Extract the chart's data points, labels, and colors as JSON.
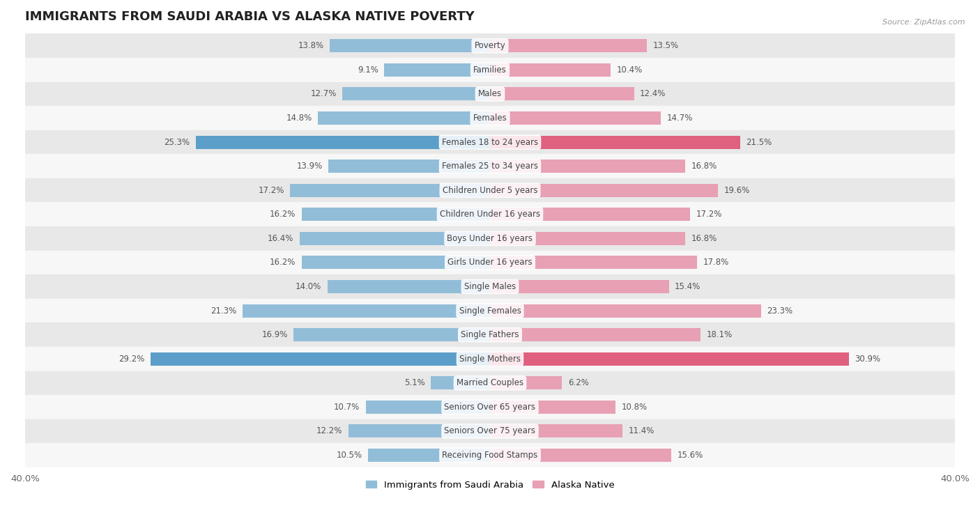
{
  "title": "IMMIGRANTS FROM SAUDI ARABIA VS ALASKA NATIVE POVERTY",
  "source": "Source: ZipAtlas.com",
  "categories": [
    "Poverty",
    "Families",
    "Males",
    "Females",
    "Females 18 to 24 years",
    "Females 25 to 34 years",
    "Children Under 5 years",
    "Children Under 16 years",
    "Boys Under 16 years",
    "Girls Under 16 years",
    "Single Males",
    "Single Females",
    "Single Fathers",
    "Single Mothers",
    "Married Couples",
    "Seniors Over 65 years",
    "Seniors Over 75 years",
    "Receiving Food Stamps"
  ],
  "saudi_values": [
    13.8,
    9.1,
    12.7,
    14.8,
    25.3,
    13.9,
    17.2,
    16.2,
    16.4,
    16.2,
    14.0,
    21.3,
    16.9,
    29.2,
    5.1,
    10.7,
    12.2,
    10.5
  ],
  "alaska_values": [
    13.5,
    10.4,
    12.4,
    14.7,
    21.5,
    16.8,
    19.6,
    17.2,
    16.8,
    17.8,
    15.4,
    23.3,
    18.1,
    30.9,
    6.2,
    10.8,
    11.4,
    15.6
  ],
  "saudi_color": "#92bdd8",
  "alaska_color": "#e8a0b4",
  "saudi_highlight_color": "#5b9ec9",
  "alaska_highlight_color": "#e06080",
  "highlight_rows": [
    4,
    13
  ],
  "background_color": "#ffffff",
  "row_color_even": "#e8e8e8",
  "row_color_odd": "#f7f7f7",
  "xlim": 40.0,
  "legend_saudi": "Immigrants from Saudi Arabia",
  "legend_alaska": "Alaska Native",
  "title_fontsize": 13,
  "label_fontsize": 8.5,
  "value_fontsize": 8.5,
  "axis_fontsize": 9.5,
  "bar_height": 0.55
}
